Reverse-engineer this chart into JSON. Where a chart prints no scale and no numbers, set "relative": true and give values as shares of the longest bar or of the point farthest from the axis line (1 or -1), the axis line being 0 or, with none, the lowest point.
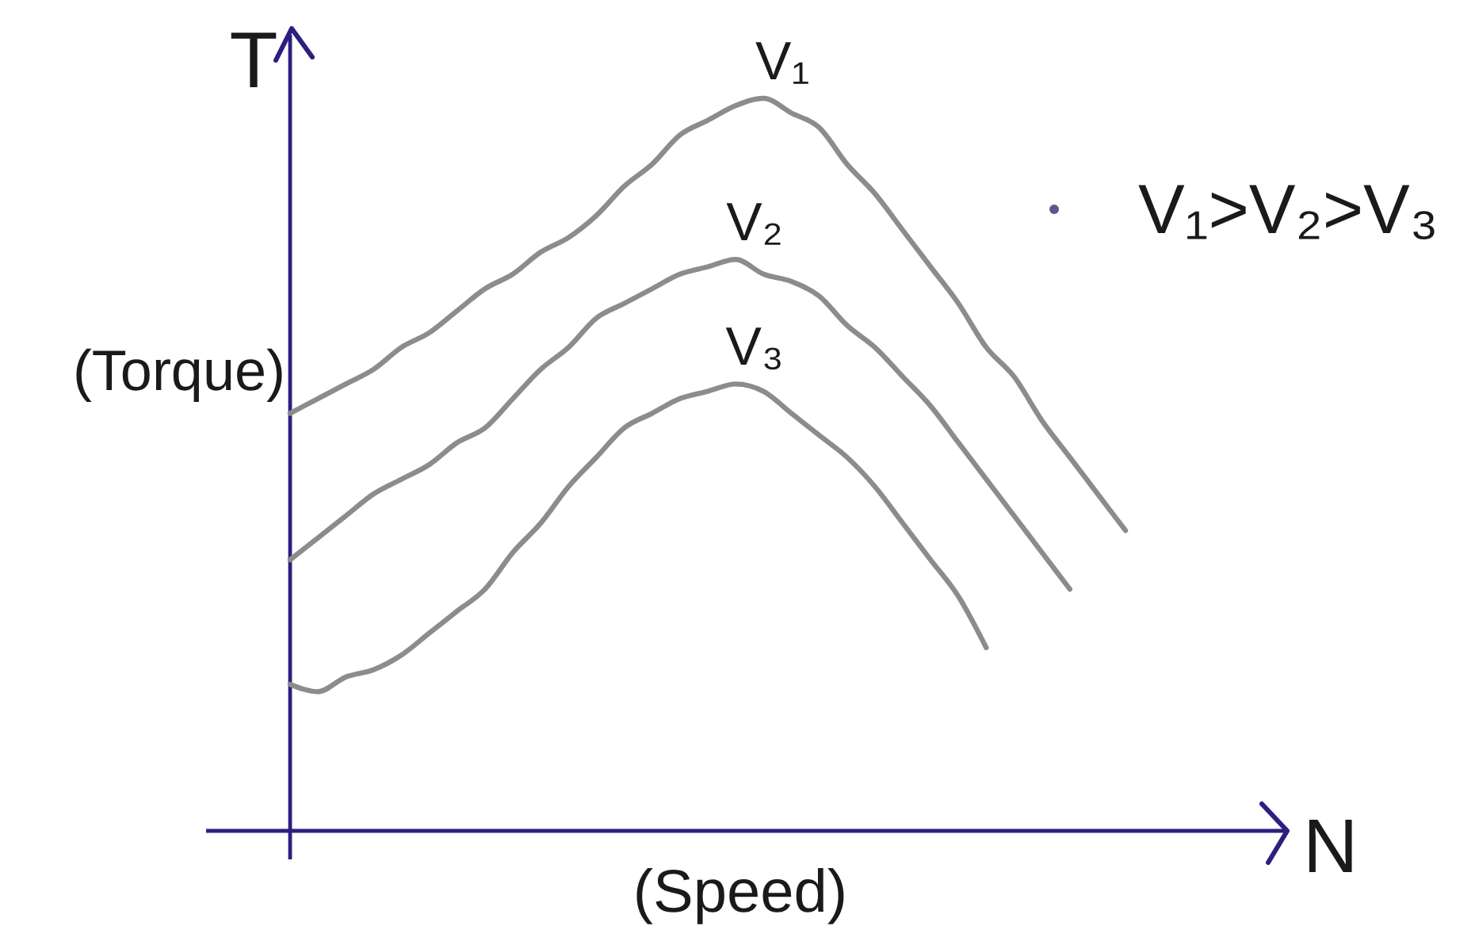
{
  "chart_data": {
    "type": "line",
    "relative": true,
    "xlabel": "N",
    "ylabel": "T",
    "annotations": [
      "(Torque)",
      "(Speed)",
      "V₁>V₂>V₃"
    ],
    "categories": [
      null,
      null,
      null,
      null,
      null,
      null,
      null,
      null,
      null,
      null,
      null,
      null,
      null,
      null,
      null,
      null,
      null,
      null,
      null,
      null,
      null,
      null,
      null,
      null,
      null,
      null,
      null,
      null,
      null,
      null,
      null
    ],
    "series": [
      {
        "name": "V₁",
        "color": "#8c8c8c",
        "values": [
          0.57,
          0.59,
          0.61,
          0.63,
          0.66,
          0.68,
          0.71,
          0.74,
          0.76,
          0.79,
          0.81,
          0.84,
          0.88,
          0.91,
          0.95,
          0.97,
          0.99,
          1,
          0.98,
          0.96,
          0.91,
          0.87,
          0.82,
          0.77,
          0.72,
          0.66,
          0.62,
          0.56,
          0.51,
          0.46,
          0.41
        ]
      },
      {
        "name": "V₂",
        "color": "#8c8c8c",
        "values": [
          0.37,
          0.4,
          0.43,
          0.46,
          0.48,
          0.5,
          0.53,
          0.55,
          0.59,
          0.63,
          0.66,
          0.7,
          0.72,
          0.74,
          0.76,
          0.77,
          0.78,
          0.76,
          0.75,
          0.73,
          0.69,
          0.66,
          0.62,
          0.58,
          0.53,
          0.48,
          0.43,
          0.38,
          0.33,
          null,
          null
        ]
      },
      {
        "name": "V₃",
        "color": "#8c8c8c",
        "values": [
          0.2,
          0.19,
          0.21,
          0.22,
          0.24,
          0.27,
          0.3,
          0.33,
          0.38,
          0.42,
          0.47,
          0.51,
          0.55,
          0.57,
          0.59,
          0.6,
          0.61,
          0.6,
          0.57,
          0.54,
          0.51,
          0.47,
          0.42,
          0.37,
          0.32,
          0.25,
          null,
          null,
          null,
          null,
          null
        ]
      }
    ]
  }
}
